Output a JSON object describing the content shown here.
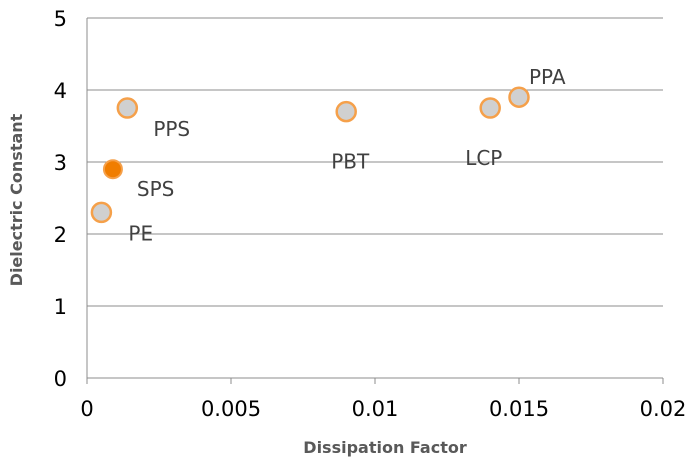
{
  "chart_data": {
    "type": "scatter",
    "xlabel": "Dissipation Factor",
    "ylabel": "Dielectric Constant",
    "xlim": [
      0,
      0.02
    ],
    "ylim": [
      0,
      5
    ],
    "x_ticks": [
      "0",
      "0.005",
      "0.01",
      "0.015",
      "0.02"
    ],
    "y_ticks": [
      "0",
      "1",
      "2",
      "3",
      "4",
      "5"
    ],
    "grid": "horizontal",
    "points": [
      {
        "label": "PE",
        "x": 0.0005,
        "y": 2.3,
        "highlight": false
      },
      {
        "label": "SPS",
        "x": 0.0009,
        "y": 2.9,
        "highlight": true
      },
      {
        "label": "PPS",
        "x": 0.0014,
        "y": 3.75,
        "highlight": false
      },
      {
        "label": "PBT",
        "x": 0.009,
        "y": 3.7,
        "highlight": false
      },
      {
        "label": "LCP",
        "x": 0.014,
        "y": 3.75,
        "highlight": false
      },
      {
        "label": "PPA",
        "x": 0.015,
        "y": 3.9,
        "highlight": false
      }
    ]
  },
  "colors": {
    "point_fill": "#d0d0d0",
    "point_stroke": "#f5a04a",
    "highlight_fill": "#f07d00",
    "grid": "#8c8c8c"
  }
}
